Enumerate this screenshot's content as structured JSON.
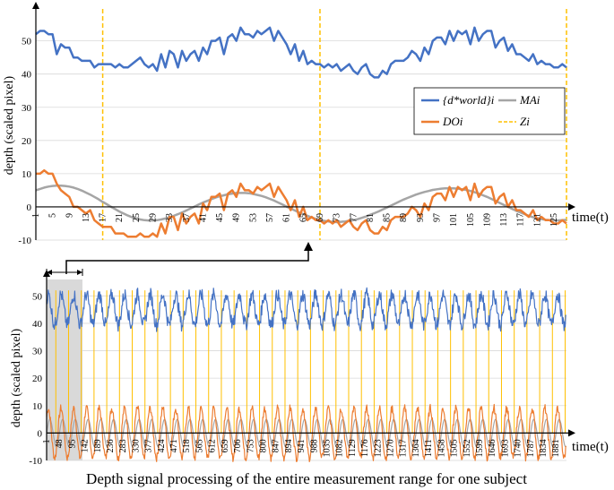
{
  "colors": {
    "world": "#4472C4",
    "do": "#ED7D31",
    "ma": "#A5A5A5",
    "z": "#FFC000",
    "shade": "#D9D9D9"
  },
  "caption": "Depth signal processing of the entire measurement range for one subject",
  "chart_data": [
    {
      "type": "line",
      "panel": "top",
      "ylabel": "depth (scaled pixel)",
      "xlabel": "time(t)",
      "ylim": [
        -10,
        58
      ],
      "xlim": [
        1,
        128
      ],
      "yticks": [
        -10,
        0,
        10,
        20,
        30,
        40,
        50
      ],
      "xticks": [
        1,
        5,
        9,
        13,
        17,
        21,
        25,
        29,
        33,
        37,
        41,
        45,
        49,
        53,
        57,
        61,
        65,
        69,
        73,
        77,
        81,
        85,
        89,
        93,
        97,
        101,
        105,
        109,
        113,
        117,
        121,
        125
      ],
      "legend": {
        "world": "{d*world}i",
        "ma": "MAi",
        "do": "DOi",
        "z": "Zi"
      },
      "z_lines": [
        17,
        69,
        128
      ],
      "series": [
        {
          "name": "world",
          "values": [
            52,
            53,
            53,
            52,
            52,
            46,
            49,
            48,
            48,
            45,
            45,
            44,
            44,
            44,
            42,
            43,
            43,
            43,
            43,
            42,
            43,
            42,
            42,
            43,
            44,
            45,
            43,
            42,
            43,
            41,
            46,
            42,
            47,
            46,
            42,
            47,
            44,
            46,
            47,
            44,
            48,
            46,
            50,
            50,
            51,
            46,
            51,
            52,
            50,
            54,
            52,
            52,
            51,
            53,
            52,
            53,
            54,
            50,
            53,
            51,
            49,
            46,
            49,
            44,
            47,
            43,
            44,
            43,
            43,
            42,
            43,
            42,
            43,
            41,
            42,
            43,
            41,
            40,
            42,
            43,
            40,
            39,
            39,
            41,
            40,
            43,
            44,
            44,
            44,
            45,
            47,
            46,
            44,
            48,
            46,
            50,
            51,
            51,
            49,
            53,
            50,
            53,
            52,
            53,
            49,
            54,
            50,
            52,
            53,
            53,
            48,
            50,
            51,
            47,
            49,
            46,
            46,
            45,
            44,
            46,
            43,
            44,
            43,
            43,
            42,
            42,
            43,
            42
          ]
        },
        {
          "name": "do",
          "values": [
            10,
            10,
            11,
            10,
            10,
            7,
            5,
            4,
            3,
            0,
            0,
            -1,
            -2,
            -1,
            -4,
            -5,
            -6,
            -6,
            -6,
            -8,
            -8,
            -8,
            -9,
            -9,
            -9,
            -8,
            -9,
            -9,
            -8,
            -9,
            -5,
            -8,
            -3,
            -3,
            -7,
            -2,
            -5,
            -3,
            -2,
            -5,
            1,
            -1,
            3,
            3,
            4,
            -1,
            4,
            5,
            3,
            7,
            5,
            5,
            4,
            6,
            5,
            6,
            7,
            3,
            6,
            4,
            2,
            -1,
            2,
            -3,
            0,
            -4,
            -3,
            -4,
            -4,
            -5,
            -4,
            -5,
            -4,
            -6,
            -5,
            -4,
            -6,
            -7,
            -5,
            -4,
            -7,
            -8,
            -8,
            -6,
            -7,
            -4,
            -3,
            -3,
            -3,
            -2,
            0,
            -1,
            -3,
            1,
            -1,
            3,
            4,
            4,
            2,
            6,
            3,
            6,
            5,
            6,
            2,
            7,
            3,
            5,
            6,
            6,
            1,
            3,
            4,
            0,
            2,
            -1,
            -1,
            -2,
            -3,
            -1,
            -4,
            -3,
            -4,
            -4,
            -5,
            -5,
            -4,
            -5
          ]
        },
        {
          "name": "ma",
          "values": [
            5.0,
            5.4,
            5.8,
            6.1,
            6.3,
            6.4,
            6.4,
            6.3,
            6.1,
            5.8,
            5.4,
            4.9,
            4.3,
            3.7,
            3.0,
            2.3,
            1.5,
            0.8,
            0.0,
            -0.7,
            -1.4,
            -2.0,
            -2.6,
            -3.1,
            -3.5,
            -3.8,
            -4.0,
            -4.1,
            -4.1,
            -4.0,
            -3.8,
            -3.5,
            -3.1,
            -2.7,
            -2.2,
            -1.7,
            -1.1,
            -0.5,
            0.1,
            0.7,
            1.3,
            1.8,
            2.3,
            2.8,
            3.2,
            3.5,
            3.8,
            4.0,
            4.2,
            4.2,
            4.2,
            4.1,
            3.9,
            3.6,
            3.3,
            2.9,
            2.4,
            1.9,
            1.3,
            0.7,
            0.1,
            -0.5,
            -1.1,
            -1.7,
            -2.2,
            -2.7,
            -3.2,
            -3.6,
            -3.9,
            -4.2,
            -4.4,
            -4.5,
            -4.6,
            -4.5,
            -4.4,
            -4.2,
            -4.0,
            -3.7,
            -3.3,
            -2.9,
            -2.4,
            -1.9,
            -1.4,
            -0.8,
            -0.2,
            0.4,
            1.0,
            1.6,
            2.2,
            2.7,
            3.2,
            3.7,
            4.1,
            4.5,
            4.8,
            5.1,
            5.3,
            5.5,
            5.6,
            5.6,
            5.6,
            5.5,
            5.3,
            5.1,
            4.8,
            4.4,
            4.0,
            3.5,
            3.0,
            2.4,
            1.8,
            1.2,
            0.6,
            0.0,
            -0.6,
            -1.2,
            -1.7,
            -2.2,
            -2.7,
            -3.1,
            -3.4,
            -3.7,
            -3.9,
            -4.0,
            -4.1,
            -4.1,
            -4.0,
            -3.9
          ]
        }
      ]
    },
    {
      "type": "line",
      "panel": "bottom",
      "ylabel": "depth (scaled pixel)",
      "xlabel": "time(t)",
      "ylim": [
        -10,
        55
      ],
      "xlim": [
        1,
        1920
      ],
      "yticks": [
        -10,
        0,
        10,
        20,
        30,
        40,
        50
      ],
      "xticks": [
        1,
        48,
        95,
        142,
        189,
        236,
        283,
        330,
        377,
        424,
        471,
        518,
        565,
        612,
        659,
        706,
        753,
        800,
        847,
        894,
        941,
        988,
        1035,
        1082,
        1129,
        1176,
        1223,
        1270,
        1317,
        1364,
        1411,
        1458,
        1505,
        1552,
        1599,
        1646,
        1693,
        1740,
        1787,
        1834,
        1881
      ],
      "cycle_period": 47,
      "cycle_count": 41,
      "series": [
        {
          "name": "world",
          "center": 45,
          "amplitude": 5.5,
          "noise": 2.5
        },
        {
          "name": "do",
          "center": 0,
          "amplitude": 9,
          "noise": 1.5
        },
        {
          "name": "ma",
          "center": 0,
          "amplitude": 5,
          "noise": 0
        }
      ]
    }
  ]
}
